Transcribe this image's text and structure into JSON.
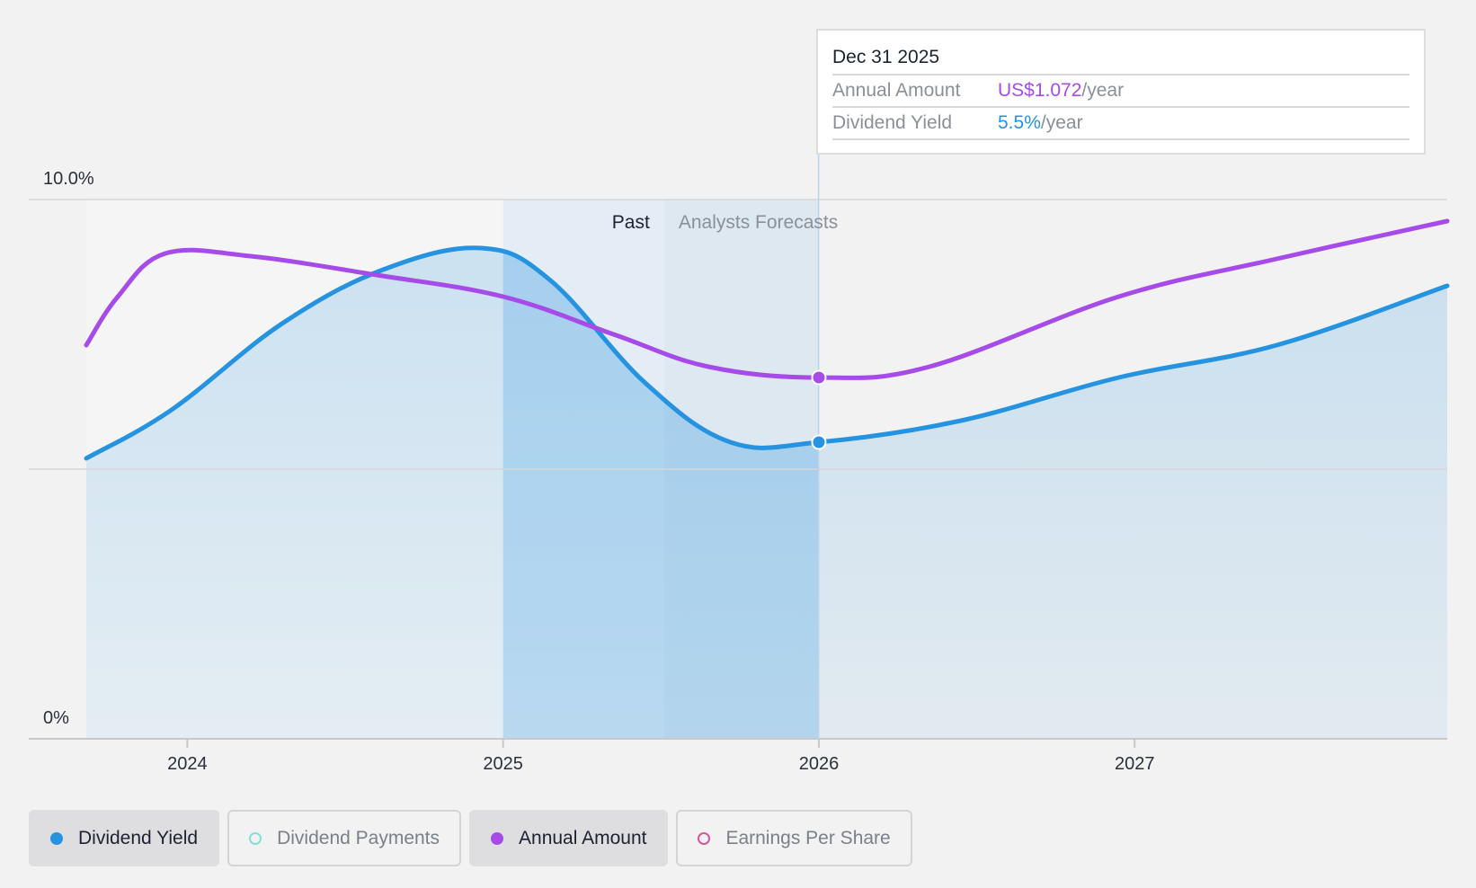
{
  "chart_data": {
    "type": "line",
    "x_range": [
      2023.68,
      2027.99
    ],
    "ylim": [
      0,
      10
    ],
    "y_tick_labels": [
      "10.0%",
      "0%"
    ],
    "x_ticks": [
      {
        "value": 2024,
        "label": "2024"
      },
      {
        "value": 2025,
        "label": "2025"
      },
      {
        "value": 2026,
        "label": "2026"
      },
      {
        "value": 2027,
        "label": "2027"
      }
    ],
    "grid": {
      "horizontal_at": [
        0,
        5,
        10
      ]
    },
    "past_region": [
      2025.0,
      2025.51
    ],
    "forecast_region": [
      2025.51,
      2026.0
    ],
    "past_label": "Past",
    "forecast_label": "Analysts Forecasts",
    "highlight_x": 2025.999,
    "series": [
      {
        "name": "Dividend Yield",
        "color": "#2593e0",
        "area": true,
        "points": [
          [
            2023.68,
            5.2
          ],
          [
            2023.95,
            6.1
          ],
          [
            2024.3,
            7.7
          ],
          [
            2024.62,
            8.7
          ],
          [
            2024.93,
            9.1
          ],
          [
            2025.15,
            8.5
          ],
          [
            2025.45,
            6.6
          ],
          [
            2025.72,
            5.5
          ],
          [
            2026.0,
            5.5
          ],
          [
            2026.45,
            5.9
          ],
          [
            2026.95,
            6.7
          ],
          [
            2027.45,
            7.3
          ],
          [
            2027.99,
            8.4
          ]
        ]
      },
      {
        "name": "Annual Amount",
        "color": "#a64be8",
        "area": false,
        "points": [
          [
            2023.68,
            7.3
          ],
          [
            2023.78,
            8.2
          ],
          [
            2023.93,
            9.0
          ],
          [
            2024.2,
            8.95
          ],
          [
            2024.6,
            8.6
          ],
          [
            2025.0,
            8.2
          ],
          [
            2025.35,
            7.5
          ],
          [
            2025.65,
            6.9
          ],
          [
            2026.0,
            6.7
          ],
          [
            2026.35,
            6.9
          ],
          [
            2026.95,
            8.2
          ],
          [
            2027.45,
            8.9
          ],
          [
            2027.99,
            9.6
          ]
        ]
      }
    ],
    "markers": [
      {
        "series": "Dividend Yield",
        "x": 2026.0,
        "y": 5.5,
        "color": "#2593e0"
      },
      {
        "series": "Annual Amount",
        "x": 2026.0,
        "y": 6.7,
        "color": "#a64be8"
      }
    ]
  },
  "tooltip": {
    "date": "Dec 31 2025",
    "rows": [
      {
        "key": "Annual Amount",
        "value": "US$1.072",
        "unit": "/year"
      },
      {
        "key": "Dividend Yield",
        "value": "5.5%",
        "unit": "/year"
      }
    ]
  },
  "legend": [
    {
      "label": "Dividend Yield",
      "active": true,
      "color": "#2593e0",
      "filled": true
    },
    {
      "label": "Dividend Payments",
      "active": false,
      "color": "#7fe0d8",
      "filled": false
    },
    {
      "label": "Annual Amount",
      "active": true,
      "color": "#a64be8",
      "filled": true
    },
    {
      "label": "Earnings Per Share",
      "active": false,
      "color": "#d4579a",
      "filled": false
    }
  ]
}
